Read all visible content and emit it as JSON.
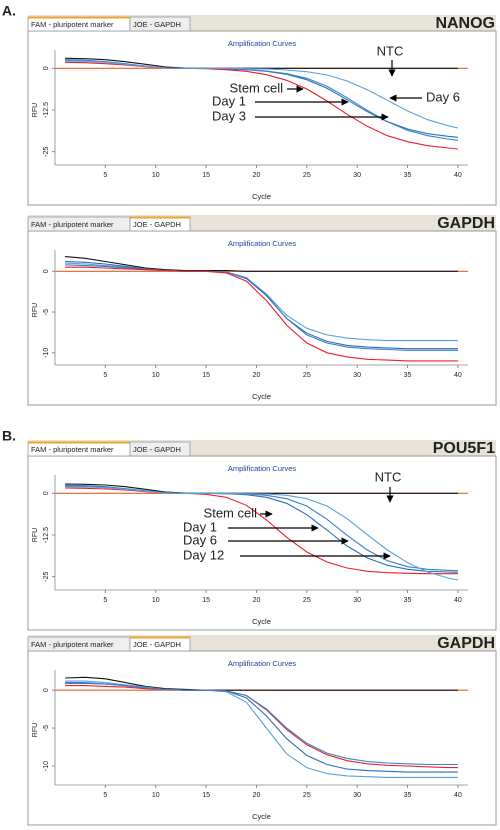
{
  "figure_id": "9664TA",
  "chart_data": [
    {
      "type": "line",
      "panel_label": "A.",
      "tabs": [
        "FAM - pluripotent marker",
        "JOE - GAPDH"
      ],
      "active_tab": 0,
      "gene": "NANOG",
      "title": "Amplification Curves",
      "x_label": "Cycle",
      "y_label": "RFU",
      "x": [
        1,
        3,
        5,
        7,
        9,
        11,
        13,
        15,
        17,
        19,
        21,
        23,
        25,
        27,
        29,
        31,
        33,
        35,
        37,
        39,
        40
      ],
      "xlim": [
        0,
        41
      ],
      "xticks": [
        5,
        10,
        15,
        20,
        25,
        30,
        35,
        40
      ],
      "ylim": [
        -29,
        4
      ],
      "yticks": [
        0,
        -12.5,
        -25
      ],
      "threshold": 0,
      "threshold_color": "#e8602a",
      "series": [
        {
          "name": "NTC",
          "color": "#111111",
          "values": [
            3.0,
            2.9,
            2.6,
            2.0,
            1.2,
            0.4,
            0.1,
            0,
            0,
            0,
            0,
            0,
            0,
            0,
            0,
            0,
            0,
            0,
            0,
            0,
            0
          ]
        },
        {
          "name": "Stem cell",
          "color": "#2a6fb8",
          "values": [
            2.4,
            2.3,
            1.9,
            1.3,
            0.6,
            0.1,
            0,
            0,
            -0.2,
            -0.4,
            -0.9,
            -1.8,
            -3.4,
            -6.0,
            -9.4,
            -13.0,
            -16.0,
            -18.2,
            -19.6,
            -20.4,
            -20.7
          ]
        },
        {
          "name": "Day 1",
          "color": "#3a80c8",
          "values": [
            2.6,
            2.4,
            2.0,
            1.4,
            0.7,
            0.1,
            0,
            0,
            -0.2,
            -0.4,
            -0.8,
            -1.6,
            -3.0,
            -5.4,
            -8.8,
            -12.6,
            -16.0,
            -18.6,
            -20.2,
            -21.2,
            -21.6
          ]
        },
        {
          "name": "Day 3",
          "color": "#e8202a",
          "values": [
            1.8,
            1.7,
            1.4,
            1.0,
            0.5,
            0.1,
            0,
            -0.1,
            -0.4,
            -0.9,
            -1.9,
            -3.6,
            -6.2,
            -9.8,
            -13.8,
            -17.4,
            -20.2,
            -22.0,
            -23.2,
            -23.9,
            -24.2
          ]
        },
        {
          "name": "Day 6",
          "color": "#5aa0d8",
          "values": [
            2.2,
            2.1,
            1.8,
            1.2,
            0.6,
            0.1,
            0,
            0,
            0,
            -0.1,
            -0.2,
            -0.5,
            -1.0,
            -2.0,
            -3.8,
            -6.4,
            -9.6,
            -12.8,
            -15.4,
            -17.2,
            -17.9
          ]
        }
      ]
    },
    {
      "type": "line",
      "tabs": [
        "FAM - pluripotent marker",
        "JOE - GAPDH"
      ],
      "active_tab": 1,
      "gene": "GAPDH",
      "title": "Amplification Curves",
      "x_label": "Cycle",
      "y_label": "RFU",
      "x": [
        1,
        3,
        5,
        7,
        9,
        11,
        13,
        15,
        17,
        19,
        21,
        23,
        25,
        27,
        29,
        31,
        33,
        35,
        37,
        39,
        40
      ],
      "xlim": [
        0,
        41
      ],
      "xticks": [
        5,
        10,
        15,
        20,
        25,
        30,
        35,
        40
      ],
      "ylim": [
        -11.5,
        2
      ],
      "yticks": [
        0,
        -5,
        -10
      ],
      "threshold": 0,
      "threshold_color": "#e8602a",
      "series": [
        {
          "color": "#111111",
          "values": [
            1.8,
            1.6,
            1.2,
            0.8,
            0.4,
            0.2,
            0.1,
            0.1,
            0.1,
            0,
            0,
            0,
            0,
            0,
            0,
            0,
            0,
            0,
            0,
            0,
            0
          ]
        },
        {
          "color": "#5aa0d8",
          "values": [
            1.0,
            0.9,
            0.7,
            0.5,
            0.3,
            0.1,
            0,
            0,
            -0.1,
            -0.8,
            -2.8,
            -5.4,
            -7.0,
            -7.8,
            -8.2,
            -8.4,
            -8.5,
            -8.5,
            -8.5,
            -8.5,
            -8.5
          ]
        },
        {
          "color": "#2a6fb8",
          "values": [
            1.2,
            1.1,
            0.9,
            0.6,
            0.3,
            0.1,
            0,
            0,
            -0.1,
            -0.9,
            -3.0,
            -5.8,
            -7.6,
            -8.6,
            -9.1,
            -9.3,
            -9.4,
            -9.5,
            -9.5,
            -9.5,
            -9.5
          ]
        },
        {
          "color": "#3a80c8",
          "values": [
            0.8,
            0.7,
            0.6,
            0.4,
            0.2,
            0.1,
            0,
            0,
            -0.1,
            -0.8,
            -2.9,
            -5.8,
            -7.8,
            -8.8,
            -9.3,
            -9.5,
            -9.6,
            -9.7,
            -9.7,
            -9.7,
            -9.7
          ]
        },
        {
          "color": "#e8202a",
          "values": [
            0.5,
            0.5,
            0.4,
            0.3,
            0.2,
            0.1,
            0,
            0,
            -0.2,
            -1.2,
            -3.6,
            -6.6,
            -8.8,
            -10.0,
            -10.5,
            -10.8,
            -10.9,
            -11.0,
            -11.0,
            -11.0,
            -11.0
          ]
        }
      ]
    },
    {
      "type": "line",
      "panel_label": "B.",
      "tabs": [
        "FAM - pluripotent marker",
        "JOE - GAPDH"
      ],
      "active_tab": 0,
      "gene": "POU5F1",
      "title": "Amplification Curves",
      "x_label": "Cycle",
      "y_label": "RFU",
      "x": [
        1,
        3,
        5,
        7,
        9,
        11,
        13,
        15,
        17,
        19,
        21,
        23,
        25,
        27,
        29,
        31,
        33,
        35,
        37,
        39,
        40
      ],
      "xlim": [
        0,
        41
      ],
      "xticks": [
        5,
        10,
        15,
        20,
        25,
        30,
        35,
        40
      ],
      "ylim": [
        -29,
        4
      ],
      "yticks": [
        0,
        -12.5,
        -25
      ],
      "threshold": 0,
      "threshold_color": "#e8602a",
      "series": [
        {
          "name": "NTC",
          "color": "#111111",
          "values": [
            2.8,
            2.7,
            2.5,
            2.0,
            1.2,
            0.4,
            0.1,
            0,
            0,
            0,
            0,
            0,
            0,
            0,
            0,
            0,
            0,
            0,
            0,
            0,
            0
          ]
        },
        {
          "name": "Stem cell",
          "color": "#e8202a",
          "values": [
            1.6,
            1.5,
            1.3,
            1.0,
            0.5,
            0.1,
            0,
            -0.3,
            -1.2,
            -3.6,
            -8.0,
            -13.2,
            -17.6,
            -20.6,
            -22.4,
            -23.4,
            -23.8,
            -24.0,
            -24.1,
            -24.1,
            -24.1
          ]
        },
        {
          "name": "Day 1",
          "color": "#2a6fb8",
          "values": [
            2.2,
            2.1,
            1.8,
            1.3,
            0.7,
            0.2,
            0,
            0,
            -0.1,
            -0.4,
            -1.2,
            -3.0,
            -6.4,
            -11.0,
            -15.8,
            -19.4,
            -21.6,
            -22.8,
            -23.4,
            -23.6,
            -23.7
          ]
        },
        {
          "name": "Day 6",
          "color": "#3a80c8",
          "values": [
            2.4,
            2.3,
            2.0,
            1.4,
            0.8,
            0.2,
            0,
            0,
            -0.1,
            -0.2,
            -0.6,
            -1.6,
            -3.8,
            -7.8,
            -12.6,
            -17.0,
            -20.2,
            -22.0,
            -22.8,
            -23.1,
            -23.2
          ]
        },
        {
          "name": "Day 12",
          "color": "#5aa0d8",
          "values": [
            2.0,
            1.9,
            1.7,
            1.2,
            0.6,
            0.1,
            0,
            0,
            0,
            -0.1,
            -0.2,
            -0.6,
            -1.6,
            -3.8,
            -7.6,
            -12.4,
            -17.0,
            -20.8,
            -23.6,
            -25.4,
            -26.0
          ]
        }
      ]
    },
    {
      "type": "line",
      "tabs": [
        "FAM - pluripotent marker",
        "JOE - GAPDH"
      ],
      "active_tab": 1,
      "gene": "GAPDH",
      "title": "Amplification Curves",
      "x_label": "Cycle",
      "y_label": "RFU",
      "x": [
        1,
        3,
        5,
        7,
        9,
        11,
        13,
        15,
        17,
        19,
        21,
        23,
        25,
        27,
        29,
        31,
        33,
        35,
        37,
        39,
        40
      ],
      "xlim": [
        0,
        41
      ],
      "xticks": [
        5,
        10,
        15,
        20,
        25,
        30,
        35,
        40
      ],
      "ylim": [
        -12.5,
        2
      ],
      "yticks": [
        0,
        -5,
        -10
      ],
      "threshold": 0,
      "threshold_color": "#e8602a",
      "series": [
        {
          "color": "#111111",
          "values": [
            1.6,
            1.7,
            1.5,
            1.0,
            0.5,
            0.2,
            0.1,
            0,
            0,
            0,
            0,
            0,
            0,
            0,
            0,
            0,
            0,
            0,
            0,
            0,
            0
          ]
        },
        {
          "color": "#5aa0d8",
          "values": [
            1.2,
            1.2,
            1.0,
            0.7,
            0.4,
            0.1,
            0,
            0,
            -0.2,
            -1.6,
            -5.0,
            -8.4,
            -10.2,
            -11.0,
            -11.3,
            -11.4,
            -11.5,
            -11.5,
            -11.5,
            -11.5,
            -11.5
          ]
        },
        {
          "color": "#2a6fb8",
          "values": [
            0.9,
            0.9,
            0.8,
            0.6,
            0.3,
            0.1,
            0,
            0,
            -0.1,
            -1.0,
            -3.4,
            -6.4,
            -8.6,
            -9.8,
            -10.4,
            -10.6,
            -10.7,
            -10.8,
            -10.8,
            -10.8,
            -10.8
          ]
        },
        {
          "color": "#e8202a",
          "values": [
            0.6,
            0.6,
            0.5,
            0.4,
            0.2,
            0.1,
            0,
            0,
            -0.1,
            -0.7,
            -2.6,
            -5.2,
            -7.2,
            -8.5,
            -9.3,
            -9.7,
            -9.9,
            -10.0,
            -10.1,
            -10.2,
            -10.2
          ]
        },
        {
          "color": "#3a80c8",
          "values": [
            1.0,
            1.0,
            0.8,
            0.6,
            0.3,
            0.1,
            0,
            0,
            -0.1,
            -0.7,
            -2.5,
            -5.0,
            -7.0,
            -8.3,
            -9.0,
            -9.4,
            -9.6,
            -9.7,
            -9.8,
            -9.8,
            -9.8
          ]
        }
      ]
    }
  ]
}
